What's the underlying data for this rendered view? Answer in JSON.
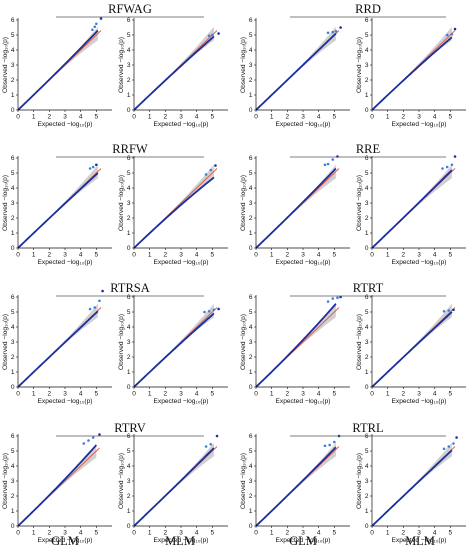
{
  "figure": {
    "footer_labels": [
      "GLM",
      "MLM",
      "GLM",
      "MLM"
    ],
    "xlabel": "Expected −log₁₀(p)",
    "ylabel": "Observed −log₁₀(p)",
    "colors": {
      "points": "#1a2f9c",
      "reference_line": "#e05a4a",
      "band": "#c8c8c8",
      "highlight": "#3a7fe0"
    }
  },
  "chart_data": [
    {
      "type": "scatter",
      "trait": "RFWAG",
      "model": "GLM",
      "xlim": [
        0,
        6
      ],
      "ylim": [
        0,
        6
      ],
      "xticks": [
        0,
        1,
        2,
        3,
        4,
        5
      ],
      "yticks": [
        0,
        1,
        2,
        3,
        4,
        5,
        6
      ],
      "end_x": 5.1,
      "end_y": 5.3,
      "tail_points": [
        [
          4.75,
          5.35
        ],
        [
          4.9,
          5.55
        ],
        [
          5.0,
          5.75
        ],
        [
          5.3,
          6.1
        ]
      ]
    },
    {
      "type": "scatter",
      "trait": "RFWAG",
      "model": "MLM",
      "xlim": [
        0,
        6
      ],
      "ylim": [
        0,
        6
      ],
      "xticks": [
        0,
        1,
        2,
        3,
        4,
        5
      ],
      "yticks": [
        0,
        1,
        2,
        3,
        4,
        5,
        6
      ],
      "end_x": 5.1,
      "end_y": 4.9,
      "tail_points": [
        [
          4.8,
          4.95
        ],
        [
          5.0,
          5.0
        ],
        [
          5.4,
          5.1
        ]
      ]
    },
    {
      "type": "scatter",
      "trait": "RRD",
      "model": "GLM",
      "xlim": [
        0,
        6
      ],
      "ylim": [
        0,
        6
      ],
      "xticks": [
        0,
        1,
        2,
        3,
        4,
        5
      ],
      "yticks": [
        0,
        1,
        2,
        3,
        4,
        5,
        6
      ],
      "end_x": 5.1,
      "end_y": 5.1,
      "tail_points": [
        [
          4.6,
          5.15
        ],
        [
          4.9,
          5.2
        ],
        [
          5.1,
          5.25
        ],
        [
          5.4,
          5.5
        ]
      ]
    },
    {
      "type": "scatter",
      "trait": "RRD",
      "model": "MLM",
      "xlim": [
        0,
        6
      ],
      "ylim": [
        0,
        6
      ],
      "xticks": [
        0,
        1,
        2,
        3,
        4,
        5
      ],
      "yticks": [
        0,
        1,
        2,
        3,
        4,
        5,
        6
      ],
      "end_x": 5.1,
      "end_y": 4.85,
      "tail_points": [
        [
          4.8,
          5.0
        ],
        [
          5.1,
          5.05
        ],
        [
          5.3,
          5.4
        ]
      ]
    },
    {
      "type": "scatter",
      "trait": "RRFW",
      "model": "GLM",
      "xlim": [
        0,
        6
      ],
      "ylim": [
        0,
        6
      ],
      "xticks": [
        0,
        1,
        2,
        3,
        4,
        5
      ],
      "yticks": [
        0,
        1,
        2,
        3,
        4,
        5,
        6
      ],
      "end_x": 5.1,
      "end_y": 5.0,
      "tail_points": [
        [
          4.6,
          5.3
        ],
        [
          4.8,
          5.4
        ],
        [
          5.0,
          5.55
        ]
      ]
    },
    {
      "type": "scatter",
      "trait": "RRFW",
      "model": "MLM",
      "xlim": [
        0,
        6
      ],
      "ylim": [
        0,
        6
      ],
      "xticks": [
        0,
        1,
        2,
        3,
        4,
        5
      ],
      "yticks": [
        0,
        1,
        2,
        3,
        4,
        5,
        6
      ],
      "end_x": 5.1,
      "end_y": 4.7,
      "tail_points": [
        [
          4.6,
          4.9
        ],
        [
          4.9,
          5.2
        ],
        [
          5.2,
          5.5
        ]
      ]
    },
    {
      "type": "scatter",
      "trait": "RRE",
      "model": "GLM",
      "xlim": [
        0,
        6
      ],
      "ylim": [
        0,
        6
      ],
      "xticks": [
        0,
        1,
        2,
        3,
        4,
        5
      ],
      "yticks": [
        0,
        1,
        2,
        3,
        4,
        5,
        6
      ],
      "end_x": 5.1,
      "end_y": 5.3,
      "tail_points": [
        [
          4.4,
          5.55
        ],
        [
          4.6,
          5.6
        ],
        [
          4.9,
          5.9
        ],
        [
          5.2,
          6.1
        ]
      ]
    },
    {
      "type": "scatter",
      "trait": "RRE",
      "model": "MLM",
      "xlim": [
        0,
        6
      ],
      "ylim": [
        0,
        6
      ],
      "xticks": [
        0,
        1,
        2,
        3,
        4,
        5
      ],
      "yticks": [
        0,
        1,
        2,
        3,
        4,
        5,
        6
      ],
      "end_x": 5.1,
      "end_y": 5.2,
      "tail_points": [
        [
          4.5,
          5.3
        ],
        [
          4.8,
          5.4
        ],
        [
          5.1,
          5.55
        ],
        [
          5.3,
          6.1
        ]
      ]
    },
    {
      "type": "scatter",
      "trait": "RTRSA",
      "model": "GLM",
      "xlim": [
        0,
        6
      ],
      "ylim": [
        0,
        6
      ],
      "xticks": [
        0,
        1,
        2,
        3,
        4,
        5
      ],
      "yticks": [
        0,
        1,
        2,
        3,
        4,
        5,
        6
      ],
      "end_x": 5.1,
      "end_y": 5.05,
      "tail_points": [
        [
          4.6,
          5.2
        ],
        [
          4.9,
          5.3
        ],
        [
          5.2,
          5.75
        ],
        [
          5.4,
          6.4
        ]
      ]
    },
    {
      "type": "scatter",
      "trait": "RTRSA",
      "model": "MLM",
      "xlim": [
        0,
        6
      ],
      "ylim": [
        0,
        6
      ],
      "xticks": [
        0,
        1,
        2,
        3,
        4,
        5
      ],
      "yticks": [
        0,
        1,
        2,
        3,
        4,
        5,
        6
      ],
      "end_x": 5.1,
      "end_y": 4.9,
      "tail_points": [
        [
          4.5,
          5.0
        ],
        [
          4.8,
          5.05
        ],
        [
          5.1,
          5.15
        ],
        [
          5.4,
          5.2
        ]
      ]
    },
    {
      "type": "scatter",
      "trait": "RTRT",
      "model": "GLM",
      "xlim": [
        0,
        6
      ],
      "ylim": [
        0,
        6
      ],
      "xticks": [
        0,
        1,
        2,
        3,
        4,
        5
      ],
      "yticks": [
        0,
        1,
        2,
        3,
        4,
        5,
        6
      ],
      "end_x": 5.1,
      "end_y": 5.55,
      "tail_points": [
        [
          4.6,
          5.7
        ],
        [
          4.9,
          5.9
        ],
        [
          5.2,
          5.95
        ],
        [
          5.4,
          6.0
        ]
      ]
    },
    {
      "type": "scatter",
      "trait": "RTRT",
      "model": "MLM",
      "xlim": [
        0,
        6
      ],
      "ylim": [
        0,
        6
      ],
      "xticks": [
        0,
        1,
        2,
        3,
        4,
        5
      ],
      "yticks": [
        0,
        1,
        2,
        3,
        4,
        5,
        6
      ],
      "end_x": 5.1,
      "end_y": 5.0,
      "tail_points": [
        [
          4.6,
          5.05
        ],
        [
          4.9,
          5.1
        ],
        [
          5.2,
          5.15
        ]
      ]
    },
    {
      "type": "scatter",
      "trait": "RTRV",
      "model": "GLM",
      "xlim": [
        0,
        6
      ],
      "ylim": [
        0,
        6
      ],
      "xticks": [
        0,
        1,
        2,
        3,
        4,
        5
      ],
      "yticks": [
        0,
        1,
        2,
        3,
        4,
        5,
        6
      ],
      "end_x": 5.0,
      "end_y": 5.4,
      "tail_points": [
        [
          4.2,
          5.5
        ],
        [
          4.5,
          5.7
        ],
        [
          4.8,
          5.9
        ],
        [
          5.2,
          6.1
        ]
      ]
    },
    {
      "type": "scatter",
      "trait": "RTRV",
      "model": "MLM",
      "xlim": [
        0,
        6
      ],
      "ylim": [
        0,
        6
      ],
      "xticks": [
        0,
        1,
        2,
        3,
        4,
        5
      ],
      "yticks": [
        0,
        1,
        2,
        3,
        4,
        5,
        6
      ],
      "end_x": 5.1,
      "end_y": 5.2,
      "tail_points": [
        [
          4.6,
          5.3
        ],
        [
          4.9,
          5.45
        ],
        [
          5.3,
          6.0
        ]
      ]
    },
    {
      "type": "scatter",
      "trait": "RTRL",
      "model": "GLM",
      "xlim": [
        0,
        6
      ],
      "ylim": [
        0,
        6
      ],
      "xticks": [
        0,
        1,
        2,
        3,
        4,
        5
      ],
      "yticks": [
        0,
        1,
        2,
        3,
        4,
        5,
        6
      ],
      "end_x": 5.1,
      "end_y": 5.25,
      "tail_points": [
        [
          4.4,
          5.35
        ],
        [
          4.7,
          5.4
        ],
        [
          5.0,
          5.6
        ],
        [
          5.3,
          6.0
        ]
      ]
    },
    {
      "type": "scatter",
      "trait": "RTRL",
      "model": "MLM",
      "xlim": [
        0,
        6
      ],
      "ylim": [
        0,
        6
      ],
      "xticks": [
        0,
        1,
        2,
        3,
        4,
        5
      ],
      "yticks": [
        0,
        1,
        2,
        3,
        4,
        5,
        6
      ],
      "end_x": 5.1,
      "end_y": 5.05,
      "tail_points": [
        [
          4.6,
          5.15
        ],
        [
          4.9,
          5.3
        ],
        [
          5.2,
          5.5
        ],
        [
          5.4,
          5.9
        ]
      ]
    }
  ]
}
